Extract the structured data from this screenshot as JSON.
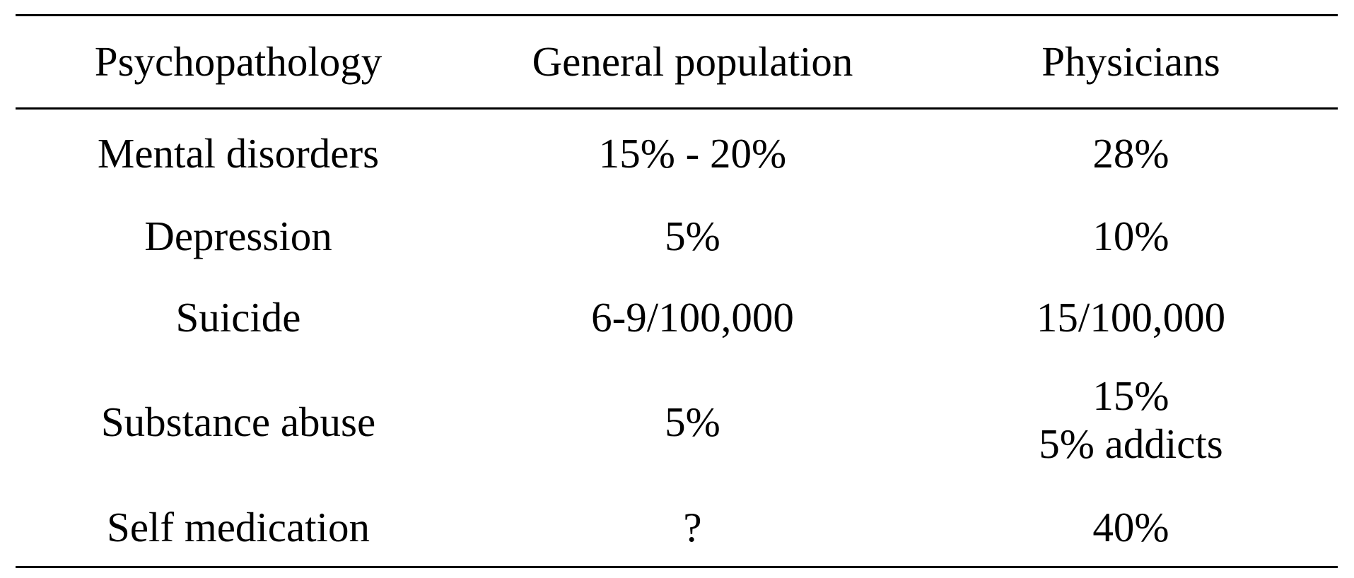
{
  "table": {
    "headers": [
      "Psychopathology",
      "General population",
      "Physicians"
    ],
    "rows": [
      {
        "psychopathology": "Mental disorders",
        "general_population": "15% - 20%",
        "physicians": [
          "28%"
        ]
      },
      {
        "psychopathology": "Depression",
        "general_population": "5%",
        "physicians": [
          "10%"
        ]
      },
      {
        "psychopathology": "Suicide",
        "general_population": "6-9/100,000",
        "physicians": [
          "15/100,000"
        ]
      },
      {
        "psychopathology": "Substance abuse",
        "general_population": "5%",
        "physicians": [
          "15%",
          "5% addicts"
        ]
      },
      {
        "psychopathology": "Self medication",
        "general_population": "?",
        "physicians": [
          "40%"
        ]
      }
    ]
  }
}
